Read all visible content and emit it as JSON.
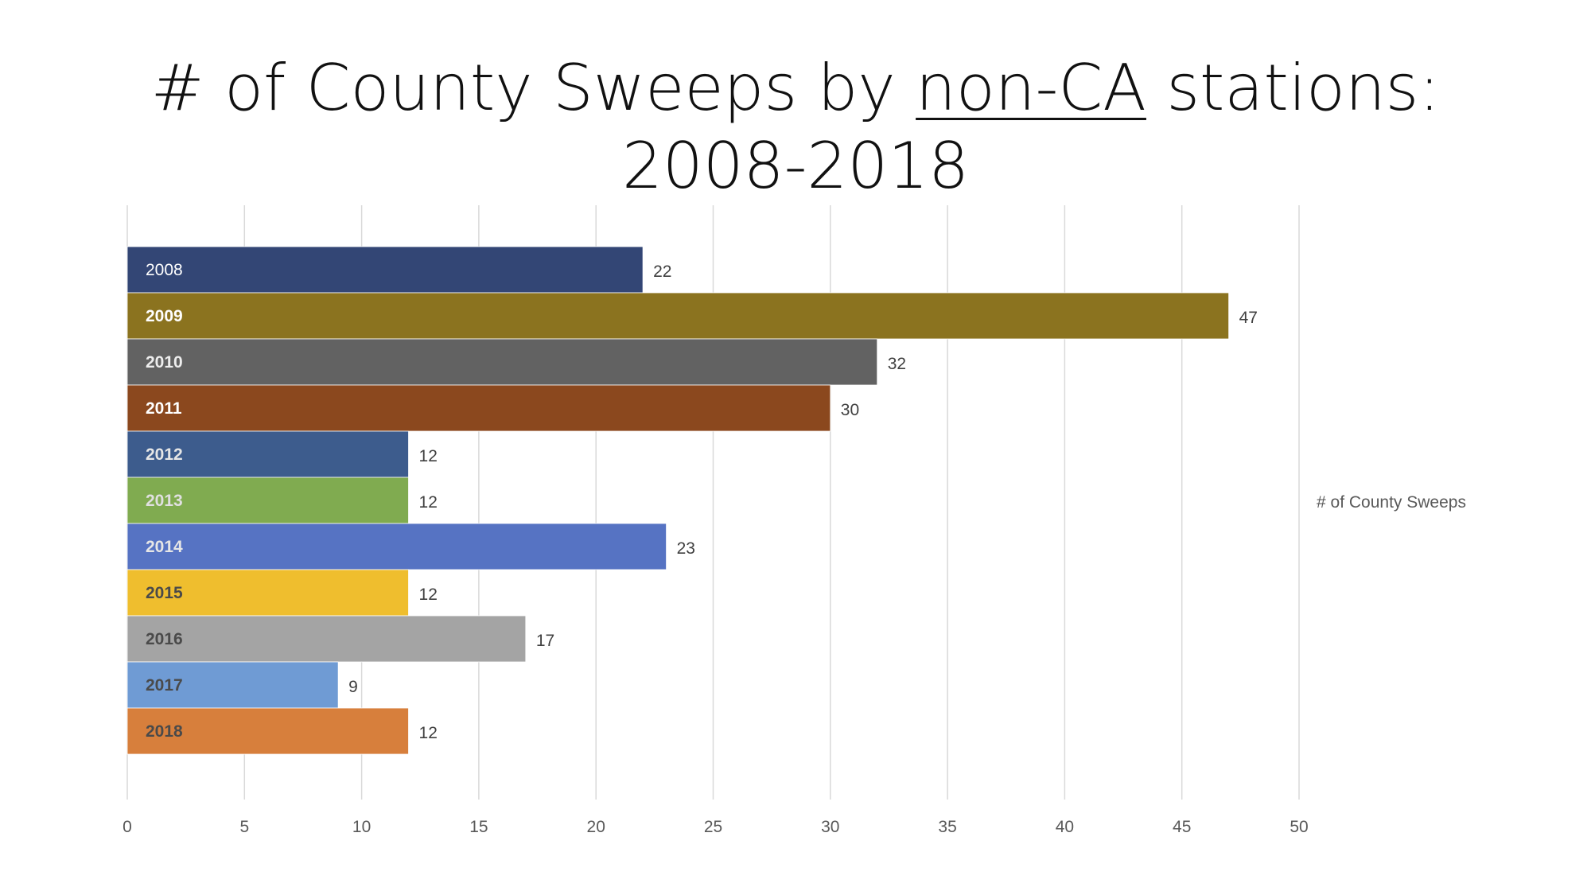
{
  "chart_data": {
    "type": "bar",
    "orientation": "horizontal",
    "title_parts": {
      "before": "# of County Sweeps by ",
      "underlined": "non-CA",
      "after": " stations:",
      "line2": "2008-2018"
    },
    "categories": [
      "2008",
      "2009",
      "2010",
      "2011",
      "2012",
      "2013",
      "2014",
      "2015",
      "2016",
      "2017",
      "2018"
    ],
    "values": [
      22,
      47,
      32,
      30,
      12,
      12,
      23,
      12,
      17,
      9,
      12
    ],
    "series_name": "# of County Sweeps",
    "colors": [
      "#334675",
      "#8B731F",
      "#626262",
      "#8B481E",
      "#3D5C8D",
      "#80AB50",
      "#5673C3",
      "#EFBE2E",
      "#A4A4A4",
      "#6F9BD4",
      "#D77F3C"
    ],
    "category_label_colors": [
      "#ffffff",
      "#ffffff",
      "#eeeeee",
      "#ffffff",
      "#e6e6e6",
      "#e0e0e0",
      "#e6e6e6",
      "#4a4a4a",
      "#4a4a4a",
      "#4a4a4a",
      "#4a4a4a"
    ],
    "xticks": [
      0,
      5,
      10,
      15,
      20,
      25,
      30,
      35,
      40,
      45,
      50
    ],
    "xlim": [
      0,
      50
    ],
    "xlabel": "",
    "ylabel": "",
    "grid": true,
    "legend": "right"
  }
}
